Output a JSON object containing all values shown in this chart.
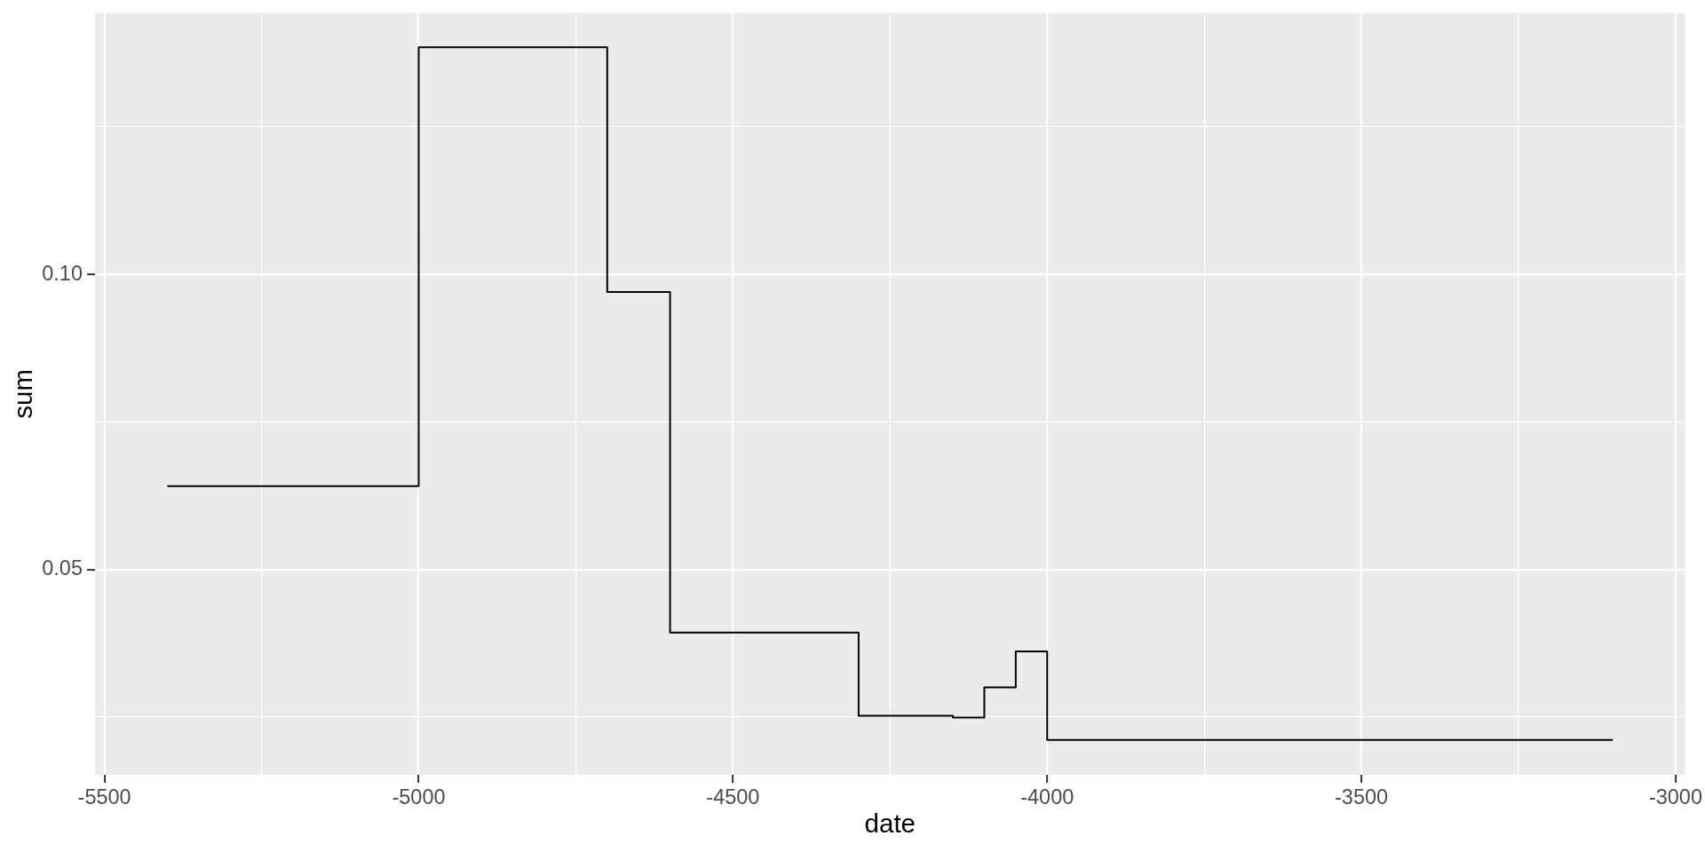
{
  "chart_data": {
    "type": "step",
    "xlabel": "date",
    "ylabel": "sum",
    "x": [
      -5400,
      -5000,
      -4700,
      -4600,
      -4300,
      -4150,
      -4100,
      -4050,
      -4000,
      -3100
    ],
    "series": [
      {
        "color": "#000000",
        "values": [
          0.0641,
          0.1385,
          0.097,
          0.0393,
          0.0252,
          0.0249,
          0.03,
          0.0361,
          0.0211,
          0.0211
        ]
      }
    ],
    "xlim": [
      -5515,
      -2985
    ],
    "ylim": [
      0.0152,
      0.1443
    ],
    "xticks": [
      -5500,
      {
        "value": -5250,
        "label": null
      },
      -5000,
      {
        "value": -4750,
        "label": null
      },
      -4500,
      {
        "value": -4250,
        "label": null
      },
      -4000,
      {
        "value": -3750,
        "label": null
      },
      -3500,
      {
        "value": -3250,
        "label": null
      },
      -3000
    ],
    "yticks": [
      {
        "value": 0.025,
        "label": null
      },
      0.05,
      {
        "value": 0.075,
        "label": null
      },
      {
        "value": 0.1,
        "label": "0.10"
      },
      {
        "value": 0.125,
        "label": null
      }
    ],
    "grid": true,
    "legend": false,
    "marker": "none",
    "line_style": "solid"
  }
}
